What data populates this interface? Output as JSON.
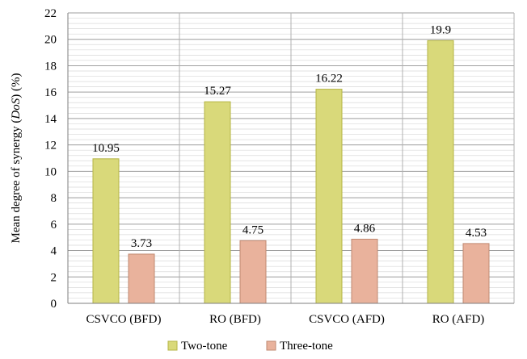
{
  "chart_data": {
    "type": "bar",
    "title": "",
    "xlabel": "",
    "ylabel_parts": [
      "Mean degree of synergy (",
      "DoS",
      ") (%)"
    ],
    "categories": [
      "CSVCO (BFD)",
      "RO (BFD)",
      "CSVCO (AFD)",
      "RO (AFD)"
    ],
    "series": [
      {
        "name": "Two-tone",
        "values": [
          10.95,
          15.27,
          16.22,
          19.9
        ],
        "labels": [
          "10.95",
          "15.27",
          "16.22",
          "19.9"
        ],
        "color": "#d9d97a",
        "stroke": "#b5b545"
      },
      {
        "name": "Three-tone",
        "values": [
          3.73,
          4.75,
          4.86,
          4.53
        ],
        "labels": [
          "3.73",
          "4.75",
          "4.86",
          "4.53"
        ],
        "color": "#e9b29c",
        "stroke": "#c08a72"
      }
    ],
    "ylim": [
      0,
      22
    ],
    "yticks": [
      0,
      2,
      4,
      6,
      8,
      10,
      12,
      14,
      16,
      18,
      20,
      22
    ],
    "minor_grid_step": 0.4,
    "grid": true,
    "legend_position": "bottom"
  }
}
